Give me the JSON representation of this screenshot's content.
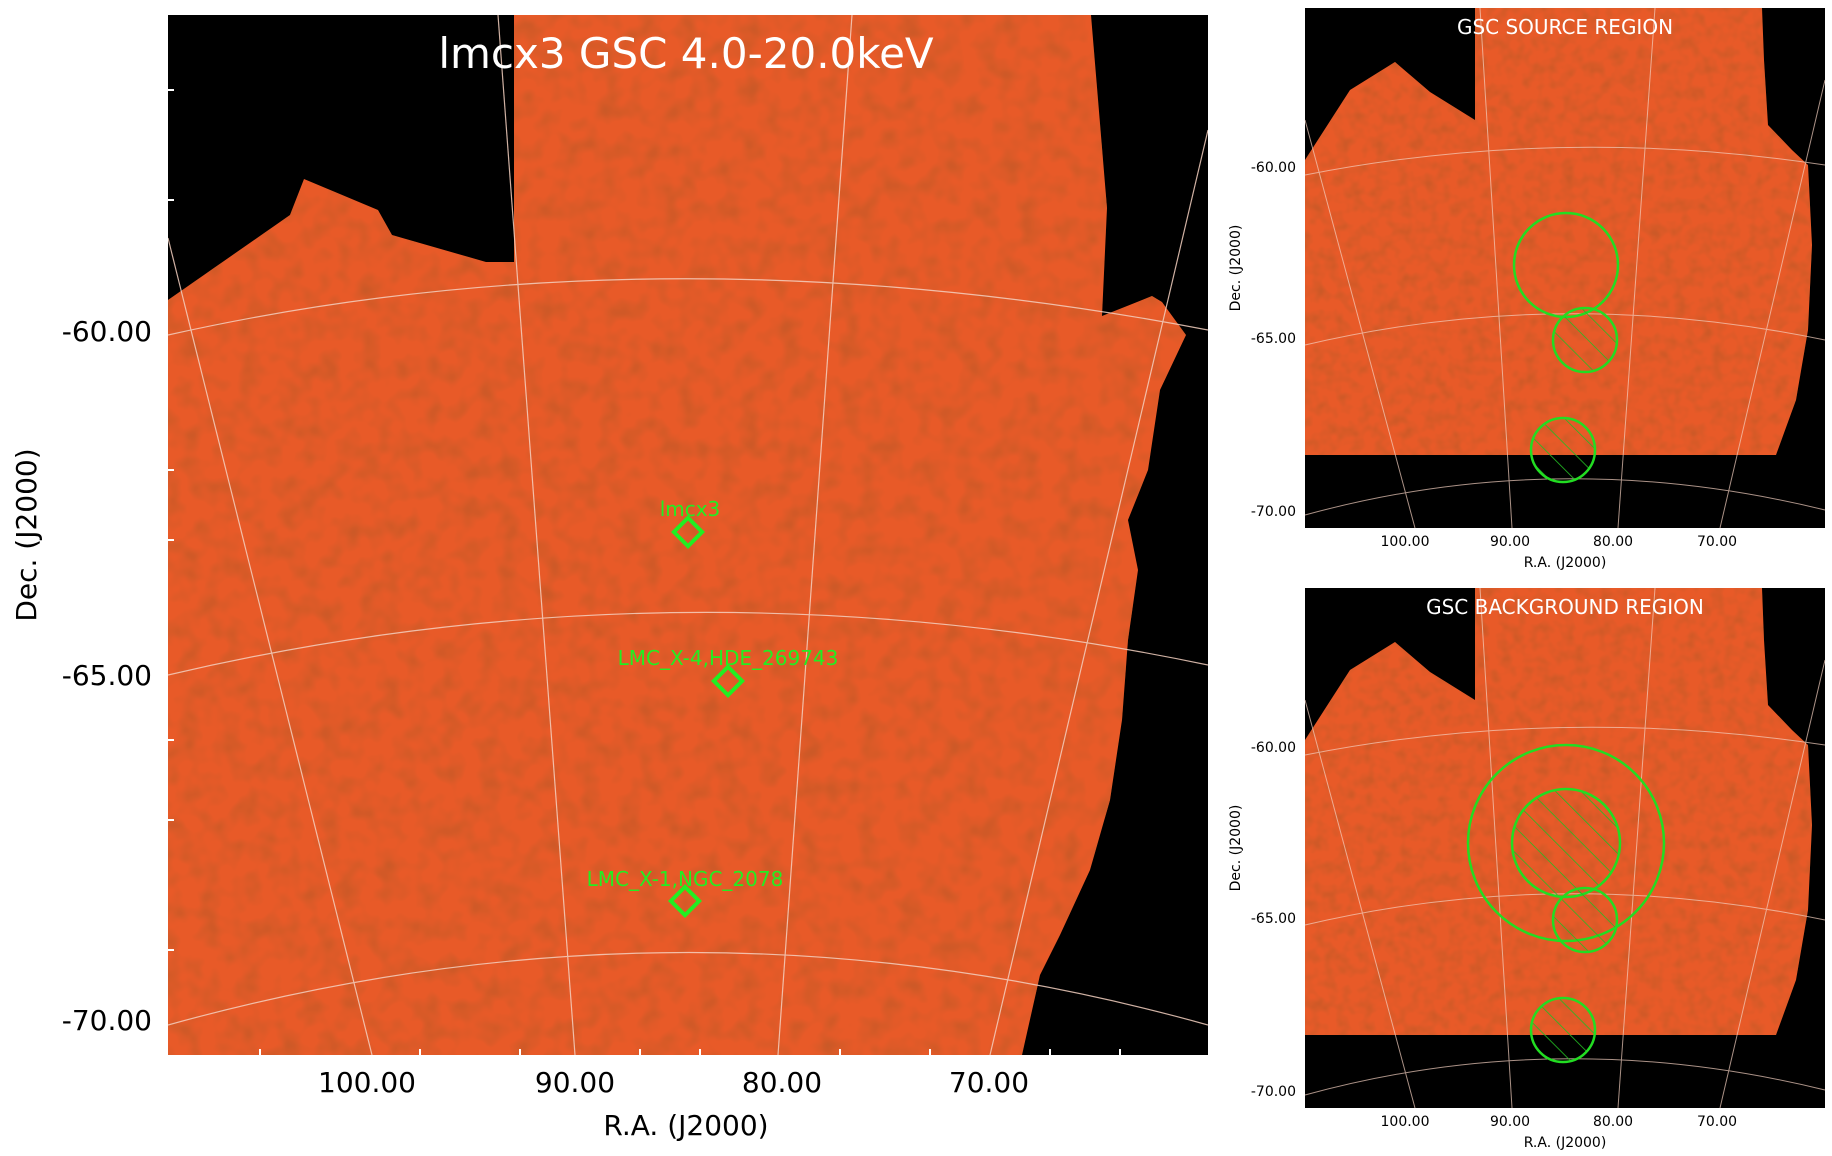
{
  "main_panel": {
    "title": "lmcx3 GSC 4.0-20.0keV",
    "xlabel": "R.A. (J2000)",
    "ylabel": "Dec. (J2000)",
    "x_ticks": [
      "100.00",
      "90.00",
      "80.00",
      "70.00"
    ],
    "y_ticks": [
      "-60.00",
      "-65.00",
      "-70.00"
    ],
    "sources": [
      {
        "label": "lmcx3"
      },
      {
        "label": "LMC_X-4,HDE_269743"
      },
      {
        "label": "LMC_X-1,NGC_2078"
      }
    ]
  },
  "source_panel": {
    "title": "GSC SOURCE REGION",
    "xlabel": "R.A. (J2000)",
    "ylabel": "Dec. (J2000)",
    "x_ticks": [
      "100.00",
      "90.00",
      "80.00",
      "70.00"
    ],
    "y_ticks": [
      "-60.00",
      "-65.00",
      "-70.00"
    ]
  },
  "background_panel": {
    "title": "GSC BACKGROUND REGION",
    "xlabel": "R.A. (J2000)",
    "ylabel": "Dec. (J2000)",
    "x_ticks": [
      "100.00",
      "90.00",
      "80.00",
      "70.00"
    ],
    "y_ticks": [
      "-60.00",
      "-65.00",
      "-70.00"
    ]
  },
  "colors": {
    "map": "#e85a28",
    "map_edge": "#b02a10",
    "region": "#22dd22",
    "grid": "#f4d0c0",
    "background": "#000000"
  }
}
